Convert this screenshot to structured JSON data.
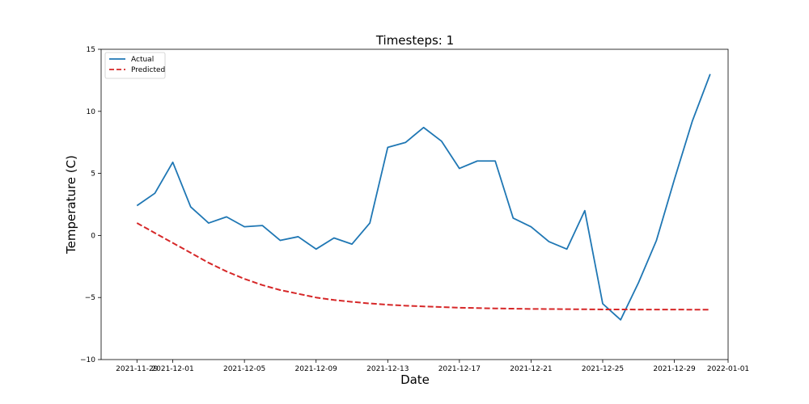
{
  "chart_data": {
    "type": "line",
    "title": "Timesteps: 1",
    "xlabel": "Date",
    "ylabel": "Temperature (C)",
    "x_type": "date",
    "xlim": [
      "2021-11-27",
      "2022-01-01"
    ],
    "ylim": [
      -10,
      15
    ],
    "x_ticks": [
      "2021-11-29",
      "2021-12-01",
      "2021-12-05",
      "2021-12-09",
      "2021-12-13",
      "2021-12-17",
      "2021-12-21",
      "2021-12-25",
      "2021-12-29",
      "2022-01-01"
    ],
    "y_ticks": [
      -10,
      -5,
      0,
      5,
      10,
      15
    ],
    "y_tick_labels": [
      "−10",
      "−5",
      "0",
      "5",
      "10",
      "15"
    ],
    "grid": false,
    "legend_position": "top-left",
    "x": [
      "2021-11-29",
      "2021-11-30",
      "2021-12-01",
      "2021-12-02",
      "2021-12-03",
      "2021-12-04",
      "2021-12-05",
      "2021-12-06",
      "2021-12-07",
      "2021-12-08",
      "2021-12-09",
      "2021-12-10",
      "2021-12-11",
      "2021-12-12",
      "2021-12-13",
      "2021-12-14",
      "2021-12-15",
      "2021-12-16",
      "2021-12-17",
      "2021-12-18",
      "2021-12-19",
      "2021-12-20",
      "2021-12-21",
      "2021-12-22",
      "2021-12-23",
      "2021-12-24",
      "2021-12-25",
      "2021-12-26",
      "2021-12-27",
      "2021-12-28",
      "2021-12-29",
      "2021-12-30",
      "2021-12-31"
    ],
    "series": [
      {
        "name": "Actual",
        "color": "#1f77b4",
        "style": "solid",
        "values": [
          2.4,
          3.4,
          5.9,
          2.3,
          1.0,
          1.5,
          0.7,
          0.8,
          -0.4,
          -0.1,
          -1.1,
          -0.2,
          -0.7,
          1.0,
          7.1,
          7.5,
          8.7,
          7.6,
          5.4,
          6.0,
          6.0,
          1.4,
          0.7,
          -0.5,
          -1.1,
          2.0,
          -5.5,
          -6.8,
          -3.8,
          -0.4,
          4.5,
          9.2,
          13.0
        ]
      },
      {
        "name": "Predicted",
        "color": "#d62728",
        "style": "dashed",
        "values": [
          1.0,
          0.2,
          -0.6,
          -1.4,
          -2.2,
          -2.9,
          -3.5,
          -4.0,
          -4.4,
          -4.7,
          -5.0,
          -5.2,
          -5.35,
          -5.48,
          -5.58,
          -5.66,
          -5.72,
          -5.77,
          -5.82,
          -5.85,
          -5.88,
          -5.9,
          -5.92,
          -5.93,
          -5.94,
          -5.95,
          -5.96,
          -5.96,
          -5.97,
          -5.97,
          -5.97,
          -5.98,
          -5.98
        ]
      }
    ]
  }
}
